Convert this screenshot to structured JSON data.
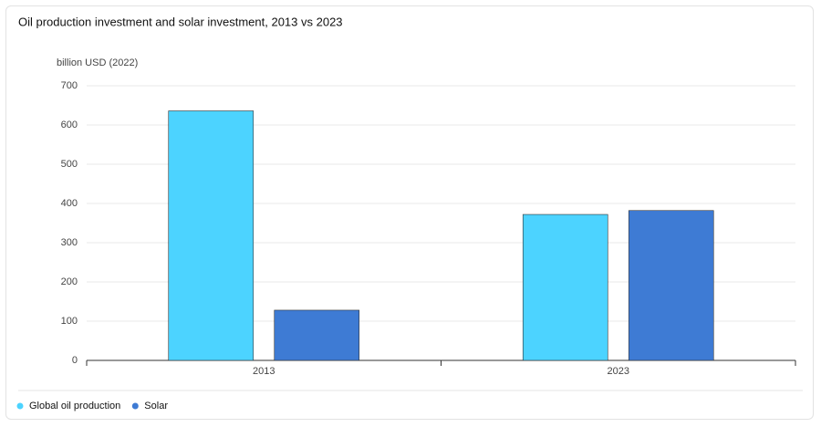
{
  "chart_data": {
    "type": "bar",
    "title": "Oil production investment and solar investment, 2013 vs 2023",
    "y_label": "billion USD (2022)",
    "categories": [
      "2013",
      "2023"
    ],
    "series": [
      {
        "name": "Global oil production",
        "color": "#4cd3ff",
        "values": [
          636,
          372
        ]
      },
      {
        "name": "Solar",
        "color": "#3e7bd4",
        "values": [
          128,
          382
        ]
      }
    ],
    "ylim": [
      0,
      700
    ],
    "yticks": [
      0,
      100,
      200,
      300,
      400,
      500,
      600,
      700
    ],
    "grid": true
  }
}
